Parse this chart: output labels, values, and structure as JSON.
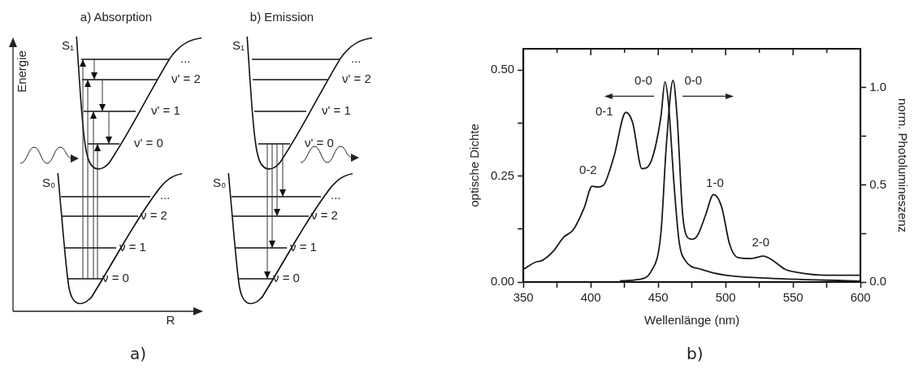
{
  "chart_data": [
    {
      "type": "other",
      "annotations": [
        "a) Absorption",
        "b) Emission",
        "Energie",
        "R",
        "S₁",
        "S₀",
        "...",
        "ν' = 2",
        "ν' = 1",
        "ν' = 0",
        "...",
        "ν = 2",
        "ν = 1",
        "ν = 0",
        "S₁",
        "S₀",
        "...",
        "ν' = 2",
        "ν' = 1",
        "ν' = 0",
        "...",
        "ν = 2",
        "ν = 1",
        "ν = 0",
        "a)"
      ]
    },
    {
      "type": "line",
      "xlabel": "Wellenlänge (nm)",
      "ylabel": "optische Dichte",
      "y2label": "norm. Photolumineszenz",
      "xlim": [
        350,
        600
      ],
      "ylim": [
        0,
        0.55
      ],
      "y2lim": [
        0,
        1.2
      ],
      "xticks": [
        350,
        {
          "value": 375,
          "label": null
        },
        400,
        {
          "value": 425,
          "label": null
        },
        450,
        {
          "value": 475,
          "label": null
        },
        500,
        {
          "value": 525,
          "label": null
        },
        550,
        {
          "value": 575,
          "label": null
        },
        600
      ],
      "yticks": [
        {
          "value": 0,
          "label": "0.00"
        },
        {
          "value": 0.125,
          "label": null
        },
        0.25,
        {
          "value": 0.375,
          "label": null
        },
        {
          "value": 0.5,
          "label": "0.50"
        }
      ],
      "y2ticks": [
        {
          "value": 0,
          "label": "0.0"
        },
        {
          "value": 0.25,
          "label": null
        },
        0.5,
        {
          "value": 0.75,
          "label": null
        },
        {
          "value": 1,
          "label": "1.0"
        }
      ],
      "grid": false,
      "legend": false,
      "marker": "none",
      "line_style": "solid",
      "series": [
        {
          "color": "#1a1a1a",
          "x": [
            350,
            359,
            364,
            372,
            380,
            387,
            395,
            401,
            405,
            409,
            417,
            426,
            431,
            438,
            445,
            452,
            455,
            457.5,
            462,
            465.5,
            470,
            482,
            500,
            526,
            600
          ],
          "values": [
            0.03,
            0.047,
            0.051,
            0.072,
            0.106,
            0.123,
            0.174,
            0.226,
            0.224,
            0.227,
            0.294,
            0.4,
            0.376,
            0.267,
            0.287,
            0.39,
            0.472,
            0.424,
            0.219,
            0.095,
            0.051,
            0.03,
            0.016,
            0.01,
            0.002
          ]
        },
        {
          "color": "#1a1a1a",
          "axis": "y2",
          "x": [
            421.5,
            435,
            445,
            452,
            456,
            461,
            464,
            468,
            471,
            475,
            479,
            485,
            491,
            497,
            503,
            509,
            519,
            528,
            535,
            544,
            553,
            576,
            600
          ],
          "values": [
            0.006,
            0.013,
            0.058,
            0.252,
            0.701,
            1.037,
            0.851,
            0.357,
            0.238,
            0.22,
            0.238,
            0.342,
            0.45,
            0.387,
            0.193,
            0.126,
            0.121,
            0.133,
            0.111,
            0.066,
            0.05,
            0.035,
            0.035
          ]
        }
      ],
      "annotations": [
        "0-2",
        "0-1",
        "0-0",
        "0-0",
        "1-0",
        "2-0",
        "b)"
      ]
    }
  ]
}
